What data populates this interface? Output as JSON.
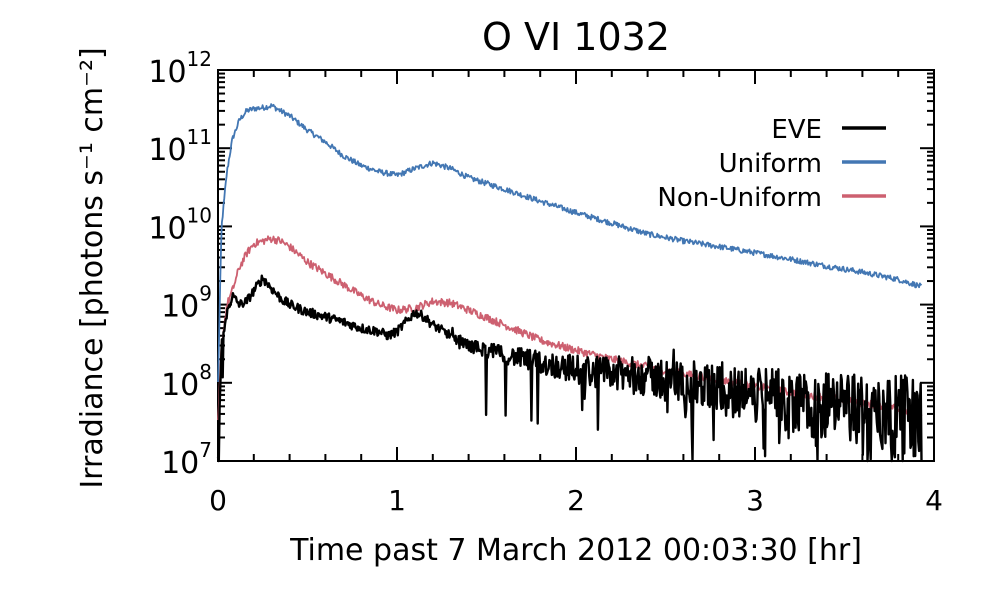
{
  "chart_data": {
    "type": "line",
    "title": "O VI 1032",
    "xlabel": "Time past 7 March 2012 00:03:30 [hr]",
    "ylabel": "Irradiance [photons s⁻¹ cm⁻²]",
    "xlim": [
      0,
      4
    ],
    "ylim": [
      10000000.0,
      1000000000000.0
    ],
    "yscale": "log",
    "grid": false,
    "legend_position": "top-right",
    "x_ticks": [
      {
        "value": 0,
        "label": "0"
      },
      {
        "value": 1,
        "label": "1"
      },
      {
        "value": 2,
        "label": "2"
      },
      {
        "value": 3,
        "label": "3"
      },
      {
        "value": 4,
        "label": "4"
      }
    ],
    "y_ticks": [
      {
        "value": 10000000.0,
        "base": "10",
        "exp": "7"
      },
      {
        "value": 100000000.0,
        "base": "10",
        "exp": "8"
      },
      {
        "value": 1000000000.0,
        "base": "10",
        "exp": "9"
      },
      {
        "value": 10000000000.0,
        "base": "10",
        "exp": "10"
      },
      {
        "value": 100000000000.0,
        "base": "10",
        "exp": "11"
      },
      {
        "value": 1000000000000.0,
        "base": "10",
        "exp": "12"
      }
    ],
    "series": [
      {
        "name": "EVE",
        "color": "#000000",
        "x": [
          0,
          0.02,
          0.05,
          0.08,
          0.12,
          0.16,
          0.2,
          0.25,
          0.3,
          0.35,
          0.4,
          0.5,
          0.6,
          0.7,
          0.8,
          0.9,
          0.95,
          1.0,
          1.05,
          1.1,
          1.15,
          1.2,
          1.3,
          1.4,
          1.6,
          1.8,
          2.0,
          2.2,
          2.4,
          2.6,
          2.8,
          3.0,
          3.2,
          3.4,
          3.6,
          3.8,
          3.93
        ],
        "y": [
          10000000.0,
          300000000.0,
          800000000.0,
          1300000000.0,
          1000000000.0,
          1100000000.0,
          1500000000.0,
          2200000000.0,
          1600000000.0,
          1200000000.0,
          1000000000.0,
          800000000.0,
          700000000.0,
          600000000.0,
          500000000.0,
          450000000.0,
          400000000.0,
          450000000.0,
          600000000.0,
          800000000.0,
          700000000.0,
          550000000.0,
          400000000.0,
          300000000.0,
          230000000.0,
          180000000.0,
          150000000.0,
          130000000.0,
          120000000.0,
          100000000.0,
          80000000.0,
          70000000.0,
          60000000.0,
          50000000.0,
          45000000.0,
          40000000.0,
          35000000.0
        ]
      },
      {
        "name": "Uniform",
        "color": "#4377b3",
        "x": [
          0,
          0.02,
          0.05,
          0.08,
          0.12,
          0.16,
          0.2,
          0.25,
          0.3,
          0.35,
          0.4,
          0.5,
          0.6,
          0.7,
          0.8,
          0.9,
          1.0,
          1.1,
          1.2,
          1.3,
          1.4,
          1.6,
          1.8,
          2.0,
          2.2,
          2.4,
          2.6,
          2.8,
          3.0,
          3.2,
          3.4,
          3.6,
          3.8,
          3.93
        ],
        "y": [
          100000000.0,
          10000000000.0,
          50000000000.0,
          130000000000.0,
          230000000000.0,
          300000000000.0,
          320000000000.0,
          330000000000.0,
          350000000000.0,
          300000000000.0,
          260000000000.0,
          170000000000.0,
          120000000000.0,
          80000000000.0,
          60000000000.0,
          50000000000.0,
          45000000000.0,
          55000000000.0,
          65000000000.0,
          55000000000.0,
          42000000000.0,
          30000000000.0,
          21000000000.0,
          15000000000.0,
          11000000000.0,
          8000000000.0,
          6500000000.0,
          5500000000.0,
          4600000000.0,
          3800000000.0,
          3100000000.0,
          2600000000.0,
          2100000000.0,
          1700000000.0
        ]
      },
      {
        "name": "Non-Uniform",
        "color": "#cd6070",
        "x": [
          0,
          0.02,
          0.05,
          0.08,
          0.12,
          0.16,
          0.2,
          0.25,
          0.3,
          0.35,
          0.4,
          0.5,
          0.6,
          0.7,
          0.8,
          0.9,
          1.0,
          1.1,
          1.2,
          1.3,
          1.4,
          1.6,
          1.8,
          2.0,
          2.2,
          2.4,
          2.6,
          2.8,
          3.0,
          3.2,
          3.4,
          3.6,
          3.8,
          3.93
        ],
        "y": [
          30000000.0,
          300000000.0,
          1000000000.0,
          1500000000.0,
          3000000000.0,
          4500000000.0,
          6000000000.0,
          6500000000.0,
          7000000000.0,
          6500000000.0,
          5500000000.0,
          3500000000.0,
          2500000000.0,
          1800000000.0,
          1300000000.0,
          1000000000.0,
          850000000.0,
          900000000.0,
          1100000000.0,
          1050000000.0,
          850000000.0,
          550000000.0,
          350000000.0,
          260000000.0,
          200000000.0,
          160000000.0,
          130000000.0,
          110000000.0,
          90000000.0,
          75000000.0,
          65000000.0,
          55000000.0,
          48000000.0,
          40000000.0
        ]
      }
    ]
  }
}
